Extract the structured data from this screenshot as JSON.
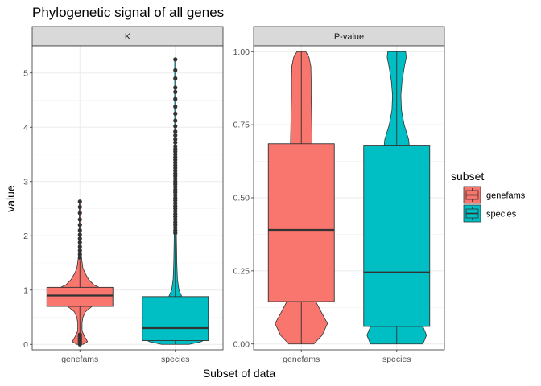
{
  "chart_data": {
    "type": "violin-boxplot",
    "title": "Phylogenetic signal of all genes",
    "xlabel": "Subset of data",
    "ylabel": "value",
    "categories": [
      "genefams",
      "species"
    ],
    "legend": {
      "title": "subset",
      "placement": "right",
      "entries": [
        {
          "label": "genefams",
          "color": "#F8766D"
        },
        {
          "label": "species",
          "color": "#00BFC4"
        }
      ]
    },
    "grid": true,
    "panels": [
      {
        "strip": "K",
        "ylim": [
          -0.1,
          5.5
        ],
        "yticks": [
          0,
          1,
          2,
          3,
          4,
          5
        ],
        "ytick_labels": [
          "0",
          "1",
          "2",
          "3",
          "4",
          "5"
        ],
        "groups": [
          {
            "name": "genefams",
            "color": "#F8766D",
            "box": {
              "q1": 0.7,
              "median": 0.9,
              "q3": 1.05,
              "whisker_low": 0.2,
              "whisker_high": 1.55
            },
            "violin": [
              [
                0.0,
                0.1
              ],
              [
                0.05,
                0.25
              ],
              [
                0.15,
                0.15
              ],
              [
                0.25,
                0.07
              ],
              [
                0.4,
                0.07
              ],
              [
                0.5,
                0.1
              ],
              [
                0.6,
                0.18
              ],
              [
                0.7,
                0.4
              ],
              [
                0.8,
                0.75
              ],
              [
                0.9,
                1.0
              ],
              [
                1.0,
                0.8
              ],
              [
                1.1,
                0.45
              ],
              [
                1.2,
                0.28
              ],
              [
                1.3,
                0.18
              ],
              [
                1.4,
                0.1
              ],
              [
                1.6,
                0.05
              ],
              [
                2.0,
                0.02
              ],
              [
                2.6,
                0.02
              ]
            ],
            "outliers": [
              2.63,
              2.53,
              2.42,
              2.3,
              2.2,
              2.1,
              2.02,
              1.95,
              1.88,
              1.8,
              1.73,
              1.66,
              1.6,
              0.18,
              0.15,
              0.12,
              0.1,
              0.07,
              0.05,
              0.02,
              0.0
            ]
          },
          {
            "name": "species",
            "color": "#00BFC4",
            "box": {
              "q1": 0.07,
              "median": 0.3,
              "q3": 0.88,
              "whisker_low": 0.0,
              "whisker_high": 2.0
            },
            "violin": [
              [
                0.0,
                0.45
              ],
              [
                0.05,
                0.85
              ],
              [
                0.1,
                1.0
              ],
              [
                0.15,
                0.7
              ],
              [
                0.2,
                0.4
              ],
              [
                0.3,
                0.3
              ],
              [
                0.5,
                0.26
              ],
              [
                0.7,
                0.24
              ],
              [
                0.85,
                0.22
              ],
              [
                0.9,
                0.2
              ],
              [
                1.0,
                0.12
              ],
              [
                1.2,
                0.07
              ],
              [
                1.5,
                0.05
              ],
              [
                2.0,
                0.035
              ],
              [
                2.5,
                0.03
              ],
              [
                3.0,
                0.025
              ],
              [
                4.0,
                0.02
              ],
              [
                5.25,
                0.02
              ]
            ],
            "outliers": [
              5.25,
              5.05,
              4.9,
              4.73,
              4.65,
              4.52,
              4.38,
              4.25,
              4.12,
              4.02,
              3.92,
              3.85,
              3.78,
              3.72,
              3.65,
              3.6,
              3.55,
              3.5,
              3.45,
              3.4,
              3.35,
              3.3,
              3.25,
              3.2,
              3.15,
              3.1,
              3.05,
              3.0,
              2.95,
              2.9,
              2.85,
              2.8,
              2.75,
              2.7,
              2.65,
              2.6,
              2.55,
              2.5,
              2.45,
              2.4,
              2.35,
              2.3,
              2.25,
              2.2,
              2.15,
              2.1,
              2.05
            ]
          }
        ]
      },
      {
        "strip": "P-value",
        "ylim": [
          -0.02,
          1.02
        ],
        "yticks": [
          0,
          0.25,
          0.5,
          0.75,
          1
        ],
        "ytick_labels": [
          "0.00",
          "0.25",
          "0.50",
          "0.75",
          "1.00"
        ],
        "groups": [
          {
            "name": "genefams",
            "color": "#F8766D",
            "box": {
              "q1": 0.145,
              "median": 0.39,
              "q3": 0.685,
              "whisker_low": 0.0,
              "whisker_high": 1.0
            },
            "violin": [
              [
                0.0,
                0.42
              ],
              [
                0.03,
                0.7
              ],
              [
                0.07,
                0.88
              ],
              [
                0.1,
                0.72
              ],
              [
                0.15,
                0.46
              ],
              [
                0.2,
                0.4
              ],
              [
                0.3,
                0.37
              ],
              [
                0.4,
                0.37
              ],
              [
                0.5,
                0.37
              ],
              [
                0.6,
                0.37
              ],
              [
                0.7,
                0.36
              ],
              [
                0.75,
                0.35
              ],
              [
                0.8,
                0.34
              ],
              [
                0.85,
                0.33
              ],
              [
                0.9,
                0.33
              ],
              [
                0.95,
                0.32
              ],
              [
                0.98,
                0.26
              ],
              [
                1.0,
                0.15
              ]
            ],
            "outliers": []
          },
          {
            "name": "species",
            "color": "#00BFC4",
            "box": {
              "q1": 0.06,
              "median": 0.245,
              "q3": 0.68,
              "whisker_low": 0.0,
              "whisker_high": 1.0
            },
            "violin": [
              [
                0.0,
                0.88
              ],
              [
                0.03,
                1.0
              ],
              [
                0.06,
                0.88
              ],
              [
                0.1,
                0.6
              ],
              [
                0.15,
                0.52
              ],
              [
                0.3,
                0.49
              ],
              [
                0.5,
                0.47
              ],
              [
                0.65,
                0.45
              ],
              [
                0.7,
                0.4
              ],
              [
                0.75,
                0.25
              ],
              [
                0.8,
                0.16
              ],
              [
                0.85,
                0.14
              ],
              [
                0.9,
                0.18
              ],
              [
                0.95,
                0.26
              ],
              [
                0.98,
                0.32
              ],
              [
                1.0,
                0.3
              ]
            ],
            "outliers": []
          }
        ]
      }
    ]
  }
}
